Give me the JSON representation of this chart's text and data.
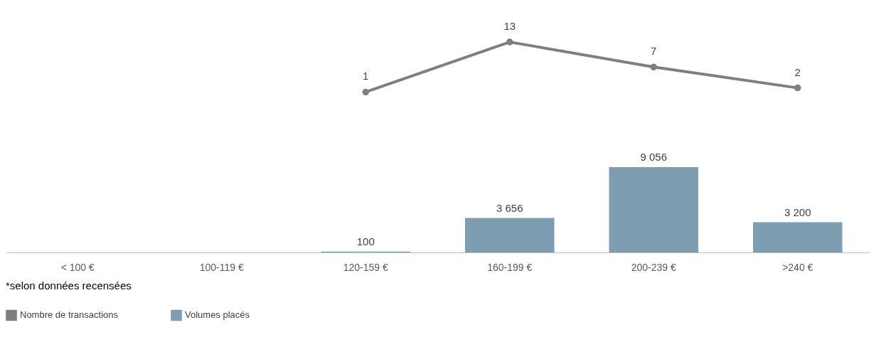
{
  "chart_data": [
    {
      "type": "line",
      "categories": [
        null,
        null,
        null,
        null,
        null,
        null
      ],
      "series": [
        {
          "name": "Nombre de transactions",
          "color": "#7f7f7f",
          "values": [
            null,
            null,
            1,
            13,
            7,
            2
          ]
        }
      ],
      "data_labels": true,
      "marker": "circle",
      "line_style": "solid",
      "tick_labels": false
    },
    {
      "type": "bar",
      "categories": [
        "< 100 €",
        "100-119 €",
        "120-159 €",
        "160-199 €",
        "200-239 €",
        ">240 €"
      ],
      "series": [
        {
          "name": "Volumes placés",
          "color": "#7f9db0",
          "values": [
            null,
            null,
            100,
            3656,
            9056,
            3200
          ]
        }
      ],
      "data_labels": true,
      "legend": "bottom",
      "annotations": [
        "*selon données recensées"
      ]
    }
  ]
}
